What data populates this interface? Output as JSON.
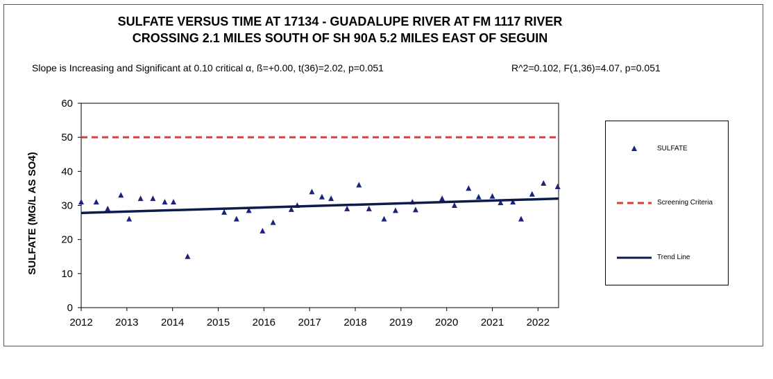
{
  "chart_data": {
    "type": "scatter",
    "title_line1": "SULFATE VERSUS TIME AT 17134 - GUADALUPE RIVER AT FM 1117 RIVER",
    "title_line2": "CROSSING 2.1 MILES SOUTH OF SH 90A 5.2 MILES EAST OF SEGUIN",
    "stats_left": "Slope is Increasing and Significant at 0.10 critical α, ß=+0.00, t(36)=2.02, p=0.051",
    "stats_right": "R^2=0.102,  F(1,36)=4.07, p=0.051",
    "ylabel": "SULFATE (MG/L AS SO4)",
    "xlabel": "",
    "xlim": [
      2012,
      2022.45
    ],
    "ylim": [
      0,
      60
    ],
    "x_ticks": [
      2012,
      2013,
      2014,
      2015,
      2016,
      2017,
      2018,
      2019,
      2020,
      2021,
      2022
    ],
    "y_ticks": [
      0,
      10,
      20,
      30,
      40,
      50,
      60
    ],
    "series": [
      {
        "name": "SULFATE",
        "style": "triangle-marker",
        "color": "#1a237e",
        "points": [
          [
            2012.0,
            31
          ],
          [
            2012.33,
            31
          ],
          [
            2012.58,
            29
          ],
          [
            2012.87,
            33
          ],
          [
            2013.05,
            26
          ],
          [
            2013.3,
            32
          ],
          [
            2013.57,
            32
          ],
          [
            2013.83,
            31
          ],
          [
            2014.02,
            31
          ],
          [
            2014.33,
            15
          ],
          [
            2015.13,
            28
          ],
          [
            2015.4,
            26
          ],
          [
            2015.67,
            28.5
          ],
          [
            2015.97,
            22.5
          ],
          [
            2016.2,
            25
          ],
          [
            2016.6,
            28.8
          ],
          [
            2016.73,
            30
          ],
          [
            2017.05,
            34
          ],
          [
            2017.27,
            32.5
          ],
          [
            2017.47,
            32
          ],
          [
            2017.82,
            29
          ],
          [
            2018.08,
            36
          ],
          [
            2018.3,
            29
          ],
          [
            2018.63,
            26
          ],
          [
            2018.88,
            28.5
          ],
          [
            2019.25,
            31
          ],
          [
            2019.32,
            28.7
          ],
          [
            2019.9,
            32
          ],
          [
            2020.17,
            30
          ],
          [
            2020.48,
            35
          ],
          [
            2020.7,
            32.5
          ],
          [
            2021.0,
            32.7
          ],
          [
            2021.18,
            30.8
          ],
          [
            2021.45,
            31
          ],
          [
            2021.63,
            26
          ],
          [
            2021.87,
            33.3
          ],
          [
            2022.12,
            36.5
          ],
          [
            2022.43,
            35.5
          ]
        ]
      },
      {
        "name": "Screening Criteria",
        "style": "dashed-line",
        "color": "#e53935",
        "points": [
          [
            2012,
            50
          ],
          [
            2022.45,
            50
          ]
        ]
      },
      {
        "name": "Trend Line",
        "style": "solid-line",
        "color": "#0d1b4c",
        "points": [
          [
            2012,
            27.8
          ],
          [
            2022.45,
            32
          ]
        ]
      }
    ],
    "legend": {
      "position": "right",
      "entries": [
        "SULFATE",
        "Screening Criteria",
        "Trend Line"
      ]
    }
  }
}
